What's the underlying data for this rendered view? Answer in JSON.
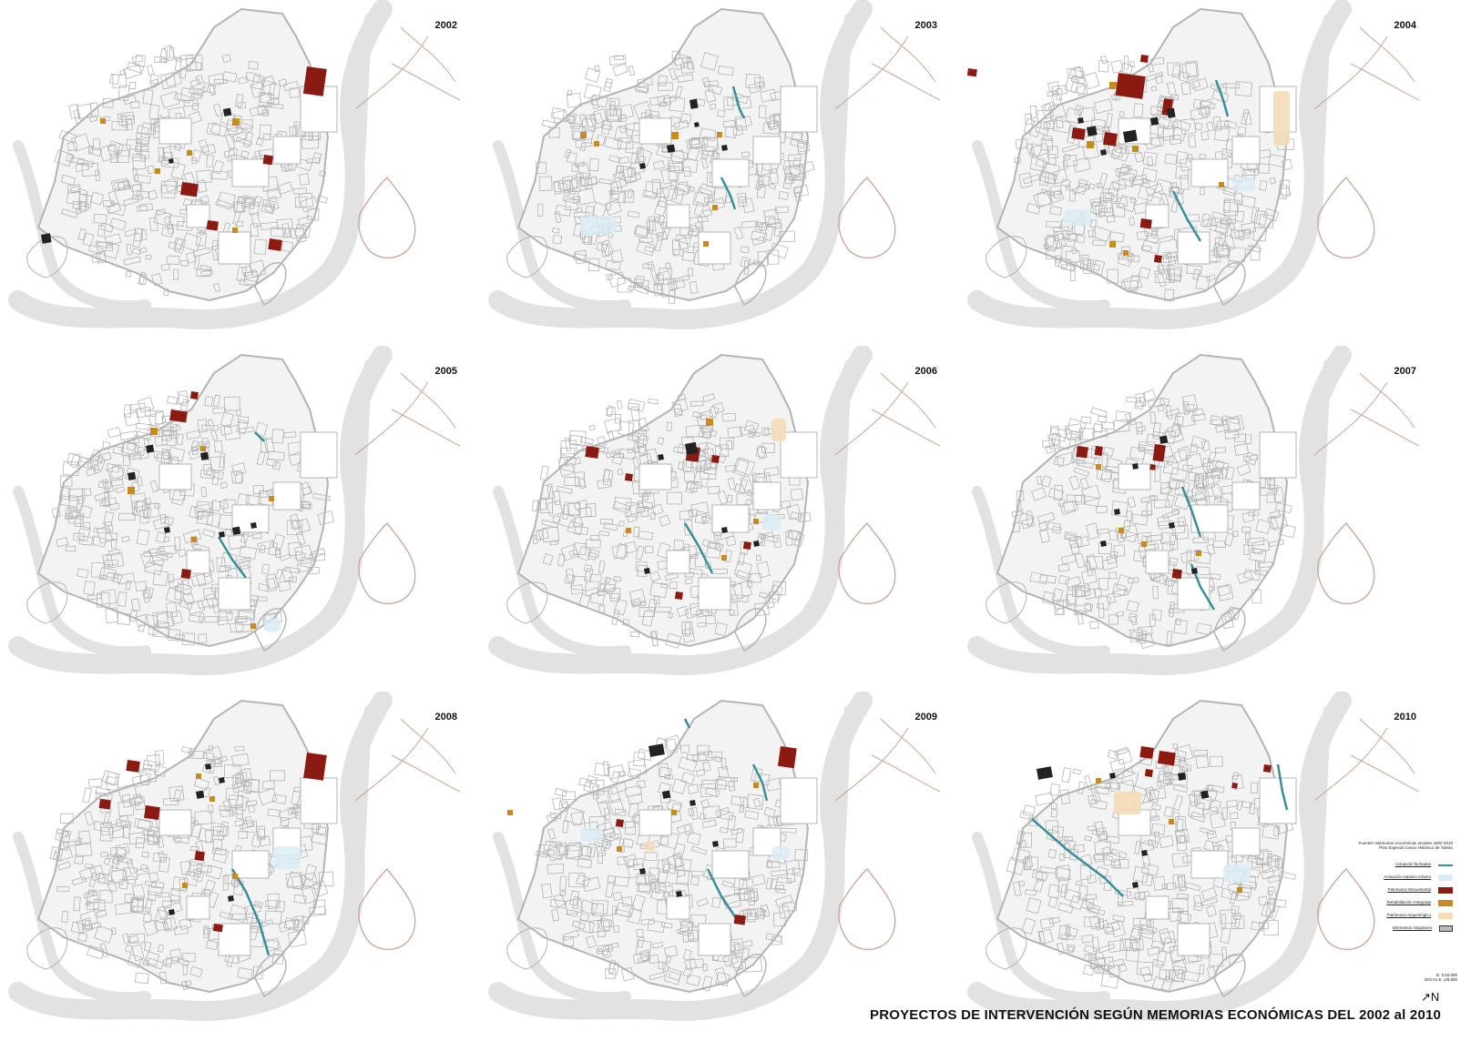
{
  "panels": [
    {
      "year": "2002",
      "col": 0,
      "row": 0
    },
    {
      "year": "2003",
      "col": 1,
      "row": 0
    },
    {
      "year": "2004",
      "col": 2,
      "row": 0
    },
    {
      "year": "2005",
      "col": 0,
      "row": 1
    },
    {
      "year": "2006",
      "col": 1,
      "row": 1
    },
    {
      "year": "2007",
      "col": 2,
      "row": 1
    },
    {
      "year": "2008",
      "col": 0,
      "row": 2
    },
    {
      "year": "2009",
      "col": 1,
      "row": 2
    },
    {
      "year": "2010",
      "col": 2,
      "row": 2
    }
  ],
  "legend": {
    "source_line_1": "Fuentes: Memorias económicas anuales 2002-2010",
    "source_line_2": "Plan Especial Casco Histórico de Toledo",
    "items": [
      {
        "label": "Actuación fachadas",
        "color": "#3a8e9a",
        "type": "line"
      },
      {
        "label": "Actuación espacio urbano",
        "color": "#d9ecf5",
        "type": "fill"
      },
      {
        "label": "Patrimonio Monumental",
        "color": "#8b1a12",
        "type": "fill"
      },
      {
        "label": "Rehabilitación Integrada",
        "color": "#c98a1e",
        "type": "fill"
      },
      {
        "label": "Patrimonio arqueológico",
        "color": "#f5dcb8",
        "type": "fill"
      },
      {
        "label": "Elementos singulares",
        "color": "#3a3a3a",
        "type": "outline"
      }
    ],
    "scale_1": "E: 1/16.000",
    "scale_2": "DIN A1  E: 1/8.000",
    "north": "N"
  },
  "title": "PROYECTOS DE INTERVENCIÓN SEGÚN MEMORIAS ECONÓMICAS DEL 2002 al 2010",
  "colors": {
    "street_grid": "#b4b4b4",
    "river": "#e2e2e2",
    "road": "#c9a59a",
    "patrimonio": "#8b1a12",
    "rehabilitacion": "#c98a1e",
    "singulares": "#222222",
    "facade": "#3a8e9a",
    "espacio": "#d9ecf5",
    "arqueologico": "#f5dcb8"
  }
}
